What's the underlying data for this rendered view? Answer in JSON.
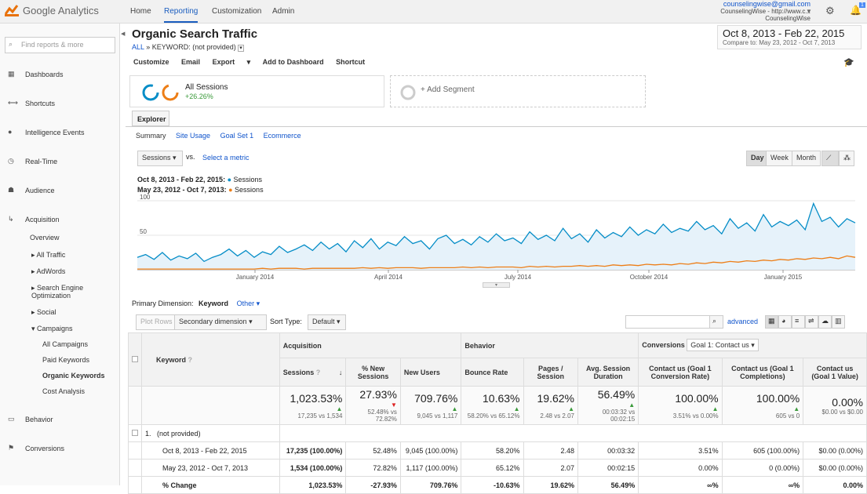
{
  "topbar": {
    "brand": "Google Analytics",
    "nav": [
      "Home",
      "Reporting",
      "Customization",
      "Admin"
    ],
    "active": "Reporting",
    "account_email": "counselingwise@gmail.com",
    "account_property": "CounselingWise - http://www.c...",
    "account_view": "CounselingWise",
    "notifications": "1"
  },
  "sidebar": {
    "search_placeholder": "Find reports & more",
    "items": [
      {
        "label": "Dashboards",
        "icon": "grid-icon"
      },
      {
        "label": "Shortcuts",
        "icon": "arrow-icon"
      },
      {
        "label": "Intelligence Events",
        "icon": "bulb-icon"
      },
      {
        "label": "Real-Time",
        "icon": "clock-icon"
      },
      {
        "label": "Audience",
        "icon": "people-icon"
      },
      {
        "label": "Acquisition",
        "icon": "acquisition-icon"
      }
    ],
    "acq_sub": [
      "Overview",
      "All Traffic",
      "AdWords",
      "Search Engine Optimization",
      "Social",
      "Campaigns"
    ],
    "campaign_sub": [
      "All Campaigns",
      "Paid Keywords",
      "Organic Keywords",
      "Cost Analysis"
    ],
    "bottom": [
      {
        "label": "Behavior",
        "icon": "behavior-icon"
      },
      {
        "label": "Conversions",
        "icon": "flag-icon"
      }
    ]
  },
  "report": {
    "title": "Organic Search Traffic",
    "breadcrumb_all": "ALL",
    "breadcrumb_rest": "KEYWORD: (not provided)",
    "date_main": "Oct 8, 2013 - Feb 22, 2015",
    "date_compare": "Compare to: May 23, 2012 - Oct 7, 2013"
  },
  "toolbar": [
    "Customize",
    "Email",
    "Export",
    "Add to Dashboard",
    "Shortcut"
  ],
  "segment": {
    "name": "All Sessions",
    "change": "+26.26%",
    "add": "+ Add Segment"
  },
  "tabs": {
    "explorer": "Explorer",
    "subtabs": [
      "Summary",
      "Site Usage",
      "Goal Set 1",
      "Ecommerce"
    ]
  },
  "chart_controls": {
    "metric": "Sessions",
    "vs": "vs.",
    "select_metric": "Select a metric",
    "granularity": [
      "Day",
      "Week",
      "Month"
    ]
  },
  "legend": [
    {
      "range": "Oct 8, 2013 - Feb 22, 2015:",
      "series": "Sessions",
      "color": "#058dc7"
    },
    {
      "range": "May 23, 2012 - Oct 7, 2013:",
      "series": "Sessions",
      "color": "#ed7e17"
    }
  ],
  "chart_data": {
    "type": "area",
    "yticks": [
      "100",
      "50"
    ],
    "ylim": [
      0,
      100
    ],
    "xticks": [
      "January 2014",
      "April 2014",
      "July 2014",
      "October 2014",
      "January 2015"
    ],
    "series": [
      {
        "name": "Sessions",
        "color": "#058dc7",
        "values": [
          18,
          22,
          15,
          25,
          14,
          20,
          16,
          24,
          12,
          18,
          22,
          30,
          20,
          28,
          18,
          26,
          22,
          34,
          25,
          30,
          36,
          28,
          40,
          30,
          38,
          26,
          42,
          32,
          45,
          30,
          40,
          35,
          48,
          38,
          42,
          30,
          45,
          50,
          38,
          44,
          36,
          48,
          40,
          52,
          42,
          46,
          38,
          55,
          44,
          50,
          42,
          60,
          45,
          52,
          40,
          58,
          46,
          54,
          48,
          62,
          50,
          58,
          52,
          66,
          54,
          60,
          56,
          70,
          58,
          64,
          52,
          74,
          60,
          68,
          56,
          80,
          62,
          70,
          64,
          72,
          58,
          96,
          70,
          76,
          62,
          74,
          68
        ]
      },
      {
        "name": "Sessions",
        "color": "#ed7e17",
        "values": [
          1,
          1,
          1,
          1,
          1,
          1,
          1,
          1,
          1,
          1,
          1,
          1,
          1,
          1,
          1,
          2,
          1,
          2,
          2,
          2,
          1,
          2,
          2,
          2,
          2,
          2,
          2,
          3,
          2,
          3,
          2,
          3,
          3,
          3,
          2,
          3,
          3,
          3,
          3,
          4,
          3,
          4,
          3,
          4,
          4,
          4,
          3,
          5,
          4,
          5,
          4,
          5,
          5,
          6,
          5,
          6,
          5,
          7,
          6,
          7,
          6,
          8,
          7,
          8,
          7,
          9,
          8,
          10,
          9,
          11,
          10,
          12,
          11,
          13,
          12,
          14,
          13,
          15,
          14,
          16,
          15,
          17,
          16,
          18,
          16,
          20,
          18
        ]
      }
    ]
  },
  "dimension": {
    "label": "Primary Dimension:",
    "value": "Keyword",
    "other": "Other"
  },
  "table_controls": {
    "plot_rows": "Plot Rows",
    "secondary": "Secondary dimension",
    "sort_label": "Sort Type:",
    "sort_value": "Default",
    "advanced": "advanced"
  },
  "table": {
    "groups": {
      "acquisition": "Acquisition",
      "behavior": "Behavior",
      "conversions": "Conversions",
      "goal": "Goal 1: Contact us"
    },
    "keyword_header": "Keyword",
    "headers": [
      "Sessions",
      "% New Sessions",
      "New Users",
      "Bounce Rate",
      "Pages / Session",
      "Avg. Session Duration",
      "Contact us (Goal 1 Conversion Rate)",
      "Contact us (Goal 1 Completions)",
      "Contact us (Goal 1 Value)"
    ],
    "totals": [
      {
        "big": "1,023.53%",
        "sub": "17,235 vs 1,534",
        "trend": "up"
      },
      {
        "big": "27.93%",
        "sub": "52.48% vs 72.82%",
        "trend": "down"
      },
      {
        "big": "709.76%",
        "sub": "9,045 vs 1,117",
        "trend": "up"
      },
      {
        "big": "10.63%",
        "sub": "58.20% vs 65.12%",
        "trend": "up"
      },
      {
        "big": "19.62%",
        "sub": "2.48 vs 2.07",
        "trend": "up"
      },
      {
        "big": "56.49%",
        "sub": "00:03:32 vs 00:02:15",
        "trend": "up"
      },
      {
        "big": "100.00%",
        "sub": "3.51% vs 0.00%",
        "trend": "up"
      },
      {
        "big": "100.00%",
        "sub": "605 vs 0",
        "trend": "up"
      },
      {
        "big": "0.00%",
        "sub": "$0.00 vs $0.00",
        "trend": ""
      }
    ],
    "row_index": "1.",
    "row_keyword": "(not provided)",
    "rows": [
      {
        "label": "Oct 8, 2013 - Feb 22, 2015",
        "cells": [
          "17,235 (100.00%)",
          "52.48%",
          "9,045 (100.00%)",
          "58.20%",
          "2.48",
          "00:03:32",
          "3.51%",
          "605 (100.00%)",
          "$0.00 (0.00%)"
        ]
      },
      {
        "label": "May 23, 2012 - Oct 7, 2013",
        "cells": [
          "1,534 (100.00%)",
          "72.82%",
          "1,117 (100.00%)",
          "65.12%",
          "2.07",
          "00:02:15",
          "0.00%",
          "0 (0.00%)",
          "$0.00 (0.00%)"
        ]
      },
      {
        "label": "% Change",
        "cells": [
          "1,023.53%",
          "-27.93%",
          "709.76%",
          "-10.63%",
          "19.62%",
          "56.49%",
          "∞%",
          "∞%",
          "0.00%"
        ]
      }
    ]
  }
}
